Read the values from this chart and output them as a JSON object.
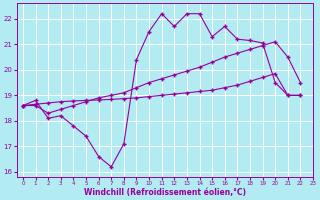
{
  "xlabel": "Windchill (Refroidissement éolien,°C)",
  "background_color": "#b2ebf2",
  "grid_color": "#ffffff",
  "line_color": "#990099",
  "xlim": [
    -0.5,
    23
  ],
  "ylim": [
    15.8,
    22.6
  ],
  "yticks": [
    16,
    17,
    18,
    19,
    20,
    21,
    22
  ],
  "xticks": [
    0,
    1,
    2,
    3,
    4,
    5,
    6,
    7,
    8,
    9,
    10,
    11,
    12,
    13,
    14,
    15,
    16,
    17,
    18,
    19,
    20,
    21,
    22,
    23
  ],
  "line1_x": [
    0,
    1,
    2,
    3,
    4,
    5,
    6,
    7,
    8,
    9,
    10,
    11,
    12,
    13,
    14,
    15,
    16,
    17,
    18,
    19,
    20,
    21,
    22
  ],
  "line1_y": [
    18.6,
    18.8,
    18.1,
    18.2,
    17.8,
    17.4,
    16.6,
    16.2,
    17.1,
    20.4,
    21.5,
    22.2,
    21.7,
    22.2,
    22.2,
    21.3,
    21.7,
    21.2,
    21.15,
    21.05,
    19.5,
    19.0,
    19.0
  ],
  "line2_x": [
    0,
    1,
    2,
    3,
    4,
    5,
    6,
    7,
    8,
    9,
    10,
    11,
    12,
    13,
    14,
    15,
    16,
    17,
    18,
    19,
    20,
    21,
    22
  ],
  "line2_y": [
    18.6,
    18.6,
    18.3,
    18.45,
    18.6,
    18.75,
    18.9,
    19.0,
    19.1,
    19.3,
    19.5,
    19.65,
    19.8,
    19.95,
    20.1,
    20.3,
    20.5,
    20.65,
    20.8,
    20.95,
    21.1,
    20.5,
    19.5
  ],
  "line3_x": [
    0,
    1,
    2,
    3,
    4,
    5,
    6,
    7,
    8,
    9,
    10,
    11,
    12,
    13,
    14,
    15,
    16,
    17,
    18,
    19,
    20,
    21,
    22
  ],
  "line3_y": [
    18.6,
    18.65,
    18.7,
    18.75,
    18.78,
    18.8,
    18.82,
    18.84,
    18.87,
    18.9,
    18.95,
    19.0,
    19.05,
    19.1,
    19.15,
    19.2,
    19.3,
    19.4,
    19.55,
    19.7,
    19.85,
    19.0,
    19.0
  ]
}
